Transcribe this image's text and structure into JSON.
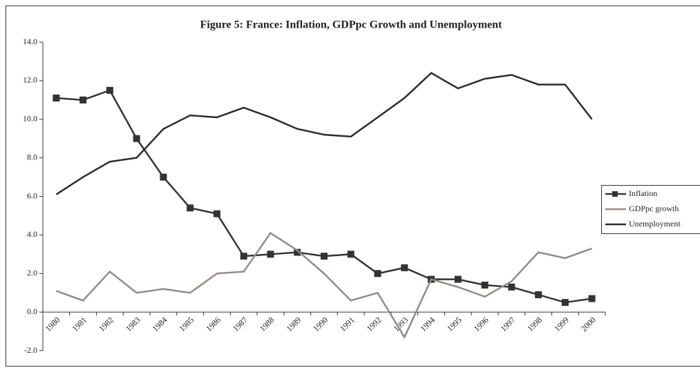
{
  "chart_data": {
    "type": "line",
    "title": "Figure 5: France: Inflation, GDPpc Growth and Unemployment",
    "categories": [
      "1980",
      "1981",
      "1982",
      "1983",
      "1984",
      "1985",
      "1986",
      "1987",
      "1988",
      "1989",
      "1990",
      "1991",
      "1992",
      "1993",
      "1994",
      "1995",
      "1996",
      "1997",
      "1998",
      "1999",
      "2000"
    ],
    "series": [
      {
        "name": "Inflation",
        "color": "#333333",
        "marker": "square",
        "values": [
          11.1,
          11.0,
          11.5,
          9.0,
          7.0,
          5.4,
          5.1,
          2.9,
          3.0,
          3.1,
          2.9,
          3.0,
          2.0,
          2.3,
          1.7,
          1.7,
          1.4,
          1.3,
          0.9,
          0.5,
          0.7
        ]
      },
      {
        "name": "GDPpc growth",
        "color": "#948a84",
        "values": [
          1.1,
          0.6,
          2.1,
          1.0,
          1.2,
          1.0,
          2.0,
          2.1,
          4.1,
          3.2,
          2.0,
          0.6,
          1.0,
          -1.3,
          1.7,
          1.3,
          0.8,
          1.6,
          3.1,
          2.8,
          3.3
        ]
      },
      {
        "name": "Unemployment",
        "color": "#2b2b2b",
        "values": [
          6.1,
          7.0,
          7.8,
          8.0,
          9.5,
          10.2,
          10.1,
          10.6,
          10.1,
          9.5,
          9.2,
          9.1,
          10.1,
          11.1,
          12.4,
          11.6,
          12.1,
          12.3,
          11.8,
          11.8,
          10.0
        ]
      }
    ],
    "ylim": [
      -2,
      14
    ],
    "yticks": [
      {
        "value": -2,
        "label": "-2.0"
      },
      {
        "value": 0,
        "label": "0.0"
      },
      {
        "value": 2,
        "label": "2.0"
      },
      {
        "value": 4,
        "label": "4.0"
      },
      {
        "value": 6,
        "label": "6.0"
      },
      {
        "value": 8,
        "label": "8.0"
      },
      {
        "value": 10,
        "label": "10.0"
      },
      {
        "value": 12,
        "label": "12.0"
      },
      {
        "value": 14,
        "label": "14.0"
      }
    ],
    "legend": "right"
  }
}
